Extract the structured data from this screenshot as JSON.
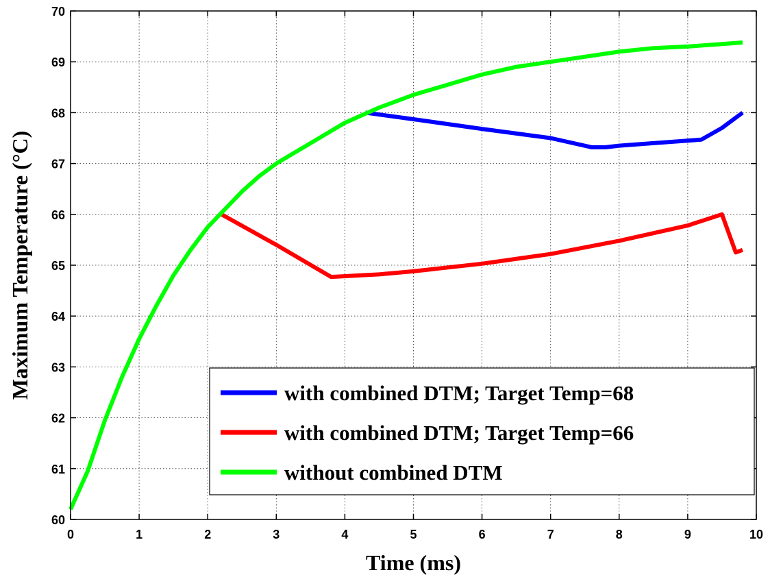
{
  "chart_data": {
    "type": "line",
    "title": "",
    "xlabel": "Time (ms)",
    "ylabel": "Maximum Temperature (°C)",
    "xlim": [
      0,
      10
    ],
    "ylim": [
      60,
      70
    ],
    "xticks": [
      "0",
      "1",
      "2",
      "3",
      "4",
      "5",
      "6",
      "7",
      "8",
      "9",
      "10"
    ],
    "yticks": [
      "60",
      "61",
      "62",
      "63",
      "64",
      "65",
      "66",
      "67",
      "68",
      "69",
      "70"
    ],
    "grid": true,
    "legend_position": "bottom-right",
    "series": [
      {
        "name": "with combined DTM; Target Temp=68",
        "color": "#0000ff",
        "points": [
          [
            4.3,
            68.0
          ],
          [
            5.0,
            67.87
          ],
          [
            6.0,
            67.68
          ],
          [
            7.0,
            67.5
          ],
          [
            7.6,
            67.32
          ],
          [
            7.8,
            67.32
          ],
          [
            8.0,
            67.35
          ],
          [
            8.5,
            67.4
          ],
          [
            9.0,
            67.45
          ],
          [
            9.2,
            67.47
          ],
          [
            9.5,
            67.7
          ],
          [
            9.8,
            68.0
          ]
        ]
      },
      {
        "name": "with combined DTM; Target Temp=66",
        "color": "#ff0000",
        "points": [
          [
            2.2,
            66.0
          ],
          [
            3.0,
            65.4
          ],
          [
            3.8,
            64.77
          ],
          [
            4.5,
            64.82
          ],
          [
            5.0,
            64.88
          ],
          [
            6.0,
            65.03
          ],
          [
            7.0,
            65.22
          ],
          [
            8.0,
            65.48
          ],
          [
            9.0,
            65.78
          ],
          [
            9.5,
            66.0
          ],
          [
            9.7,
            65.25
          ],
          [
            9.8,
            65.3
          ]
        ]
      },
      {
        "name": "without combined DTM",
        "color": "#00ff00",
        "points": [
          [
            0,
            60.2
          ],
          [
            0.25,
            60.95
          ],
          [
            0.5,
            61.95
          ],
          [
            0.75,
            62.8
          ],
          [
            1.0,
            63.55
          ],
          [
            1.25,
            64.2
          ],
          [
            1.5,
            64.8
          ],
          [
            1.75,
            65.3
          ],
          [
            2.0,
            65.75
          ],
          [
            2.25,
            66.1
          ],
          [
            2.5,
            66.45
          ],
          [
            2.75,
            66.75
          ],
          [
            3.0,
            67.0
          ],
          [
            3.5,
            67.4
          ],
          [
            4.0,
            67.8
          ],
          [
            4.5,
            68.1
          ],
          [
            5.0,
            68.35
          ],
          [
            5.5,
            68.55
          ],
          [
            6.0,
            68.75
          ],
          [
            6.5,
            68.9
          ],
          [
            7.0,
            69.0
          ],
          [
            7.5,
            69.1
          ],
          [
            8.0,
            69.2
          ],
          [
            8.5,
            69.27
          ],
          [
            9.0,
            69.3
          ],
          [
            9.5,
            69.35
          ],
          [
            9.8,
            69.38
          ]
        ]
      }
    ]
  }
}
